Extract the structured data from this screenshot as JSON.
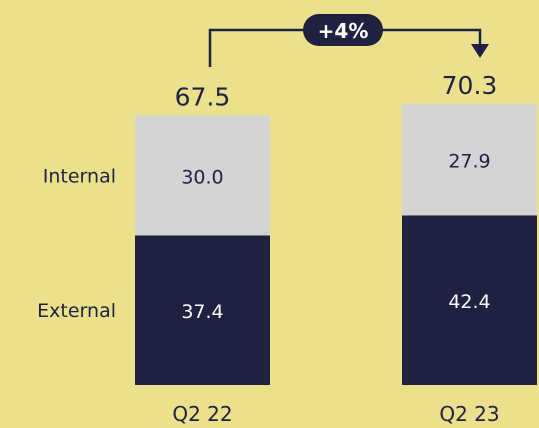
{
  "colors": {
    "background": "#ebe18c",
    "internal": "#d4d4d4",
    "external": "#1f2140",
    "text_dark": "#1f2140",
    "text_light": "#ffffff"
  },
  "chart_data": {
    "type": "bar",
    "stacked": true,
    "categories": [
      "Q2 22",
      "Q2 23"
    ],
    "series": [
      {
        "name": "External",
        "values": [
          37.4,
          42.4
        ]
      },
      {
        "name": "Internal",
        "values": [
          30.0,
          27.9
        ]
      }
    ],
    "totals": [
      "67.5",
      "70.3"
    ],
    "segment_labels": {
      "External": [
        "37.4",
        "42.4"
      ],
      "Internal": [
        "30.0",
        "27.9"
      ]
    },
    "change_label": "+4%",
    "title": "",
    "xlabel": "",
    "ylabel": "",
    "legend": "left of first bar, aligned with segments",
    "grid": false
  }
}
